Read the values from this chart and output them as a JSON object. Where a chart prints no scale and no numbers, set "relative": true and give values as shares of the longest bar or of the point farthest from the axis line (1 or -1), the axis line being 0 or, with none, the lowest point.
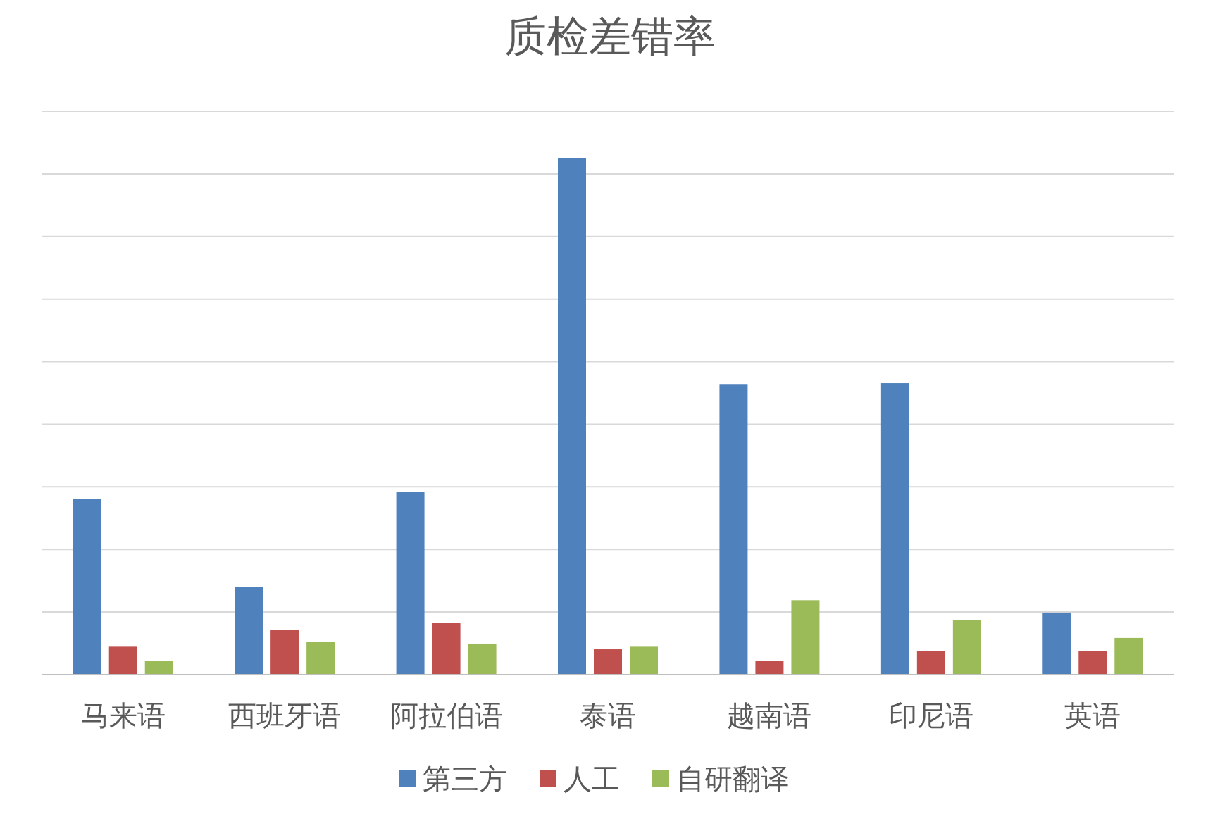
{
  "chart_data": {
    "type": "bar",
    "title": "质检差错率",
    "relative": true,
    "grid": "y",
    "legend": "bottom",
    "categories": [
      "马来语",
      "西班牙语",
      "阿拉伯语",
      "泰语",
      "越南语",
      "印尼语",
      "英语"
    ],
    "series": [
      {
        "name": "第三方",
        "color": "#4f81bd",
        "values": [
          0.34,
          0.169,
          0.354,
          1,
          0.561,
          0.564,
          0.12
        ]
      },
      {
        "name": "人工",
        "color": "#c0504d",
        "values": [
          0.054,
          0.087,
          0.1,
          0.049,
          0.027,
          0.046,
          0.046
        ]
      },
      {
        "name": "自研翻译",
        "color": "#9bbb59",
        "values": [
          0.027,
          0.063,
          0.06,
          0.054,
          0.144,
          0.106,
          0.071
        ]
      }
    ]
  }
}
